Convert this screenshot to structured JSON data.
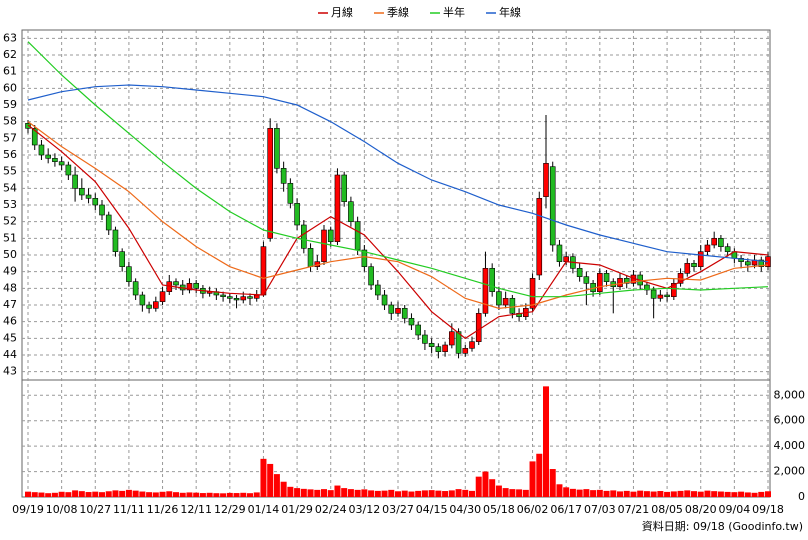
{
  "chart_data": {
    "type": "candlestick",
    "up_color": "#ff0000",
    "down_color": "#22bb22",
    "volume_color": "#ff0000",
    "grid": true,
    "ylim": [
      42.5,
      63.5
    ],
    "yticks": [
      43,
      44,
      45,
      46,
      47,
      48,
      49,
      50,
      51,
      52,
      53,
      54,
      55,
      56,
      57,
      58,
      59,
      60,
      61,
      62,
      63
    ],
    "y2lim": [
      0,
      9200
    ],
    "y2ticks": [
      0,
      {
        "value": 2000,
        "label": "2,000"
      },
      {
        "value": 4000,
        "label": "4,000"
      },
      {
        "value": 6000,
        "label": "6,000"
      },
      {
        "value": 8000,
        "label": "8,000"
      }
    ],
    "xlim": [
      0,
      110
    ],
    "xticks": [
      {
        "value": 0,
        "label": "09/19"
      },
      {
        "value": 5,
        "label": "10/08"
      },
      {
        "value": 10,
        "label": "10/27"
      },
      {
        "value": 15,
        "label": "11/11"
      },
      {
        "value": 20,
        "label": "11/26"
      },
      {
        "value": 25,
        "label": "12/11"
      },
      {
        "value": 30,
        "label": "12/29"
      },
      {
        "value": 35,
        "label": "01/14"
      },
      {
        "value": 40,
        "label": "01/29"
      },
      {
        "value": 45,
        "label": "02/24"
      },
      {
        "value": 50,
        "label": "03/12"
      },
      {
        "value": 55,
        "label": "03/27"
      },
      {
        "value": 60,
        "label": "04/15"
      },
      {
        "value": 65,
        "label": "04/30"
      },
      {
        "value": 70,
        "label": "05/18"
      },
      {
        "value": 75,
        "label": "06/02"
      },
      {
        "value": 80,
        "label": "06/17"
      },
      {
        "value": 85,
        "label": "07/03"
      },
      {
        "value": 90,
        "label": "07/21"
      },
      {
        "value": 95,
        "label": "08/05"
      },
      {
        "value": 100,
        "label": "08/20"
      },
      {
        "value": 105,
        "label": "09/04"
      },
      {
        "value": 110,
        "label": "09/18"
      }
    ],
    "footnote": "資料日期: 09/18 (Goodinfo.tw)",
    "ohlc": [
      [
        57.9,
        58.1,
        57.3,
        57.6
      ],
      [
        57.6,
        57.8,
        56.3,
        56.6
      ],
      [
        56.6,
        56.9,
        55.7,
        56.0
      ],
      [
        56.0,
        56.4,
        55.5,
        55.8
      ],
      [
        55.8,
        56.1,
        55.3,
        55.6
      ],
      [
        55.6,
        55.9,
        55.1,
        55.4
      ],
      [
        55.4,
        55.6,
        54.5,
        54.8
      ],
      [
        54.8,
        55.3,
        53.2,
        54.0
      ],
      [
        54.0,
        54.6,
        53.3,
        53.6
      ],
      [
        53.6,
        54.0,
        53.1,
        53.4
      ],
      [
        53.4,
        53.7,
        52.7,
        53.0
      ],
      [
        53.0,
        53.3,
        52.1,
        52.4
      ],
      [
        52.4,
        52.6,
        51.2,
        51.5
      ],
      [
        51.5,
        51.7,
        49.9,
        50.2
      ],
      [
        50.2,
        50.4,
        49.0,
        49.3
      ],
      [
        49.3,
        49.6,
        48.1,
        48.4
      ],
      [
        48.4,
        48.6,
        47.3,
        47.6
      ],
      [
        47.6,
        47.8,
        46.6,
        47.0
      ],
      [
        47.0,
        47.2,
        46.5,
        46.8
      ],
      [
        46.8,
        47.5,
        46.6,
        47.2
      ],
      [
        47.2,
        48.1,
        47.0,
        47.8
      ],
      [
        47.8,
        48.8,
        47.6,
        48.4
      ],
      [
        48.4,
        48.6,
        47.9,
        48.2
      ],
      [
        48.2,
        48.5,
        47.6,
        47.9
      ],
      [
        47.9,
        48.6,
        47.7,
        48.3
      ],
      [
        48.3,
        48.5,
        47.7,
        48.0
      ],
      [
        48.0,
        48.2,
        47.4,
        47.7
      ],
      [
        47.7,
        48.1,
        47.5,
        47.8
      ],
      [
        47.8,
        48.0,
        47.3,
        47.6
      ],
      [
        47.6,
        47.8,
        47.2,
        47.5
      ],
      [
        47.5,
        47.7,
        47.1,
        47.4
      ],
      [
        47.4,
        47.6,
        46.8,
        47.3
      ],
      [
        47.3,
        47.8,
        47.1,
        47.5
      ],
      [
        47.5,
        47.7,
        47.0,
        47.4
      ],
      [
        47.4,
        47.9,
        47.2,
        47.6
      ],
      [
        47.6,
        50.8,
        47.5,
        50.5
      ],
      [
        51.0,
        58.2,
        50.8,
        57.6
      ],
      [
        57.6,
        57.9,
        54.9,
        55.2
      ],
      [
        55.2,
        55.6,
        53.8,
        54.3
      ],
      [
        54.3,
        54.6,
        52.8,
        53.1
      ],
      [
        53.1,
        53.4,
        51.5,
        51.8
      ],
      [
        51.8,
        52.1,
        50.1,
        50.4
      ],
      [
        50.4,
        50.7,
        49.0,
        49.3
      ],
      [
        49.3,
        50.0,
        49.1,
        49.6
      ],
      [
        49.6,
        51.8,
        49.4,
        51.5
      ],
      [
        51.5,
        51.7,
        50.5,
        50.8
      ],
      [
        50.8,
        55.2,
        50.6,
        54.8
      ],
      [
        54.8,
        55.0,
        52.9,
        53.2
      ],
      [
        53.2,
        53.5,
        51.7,
        52.0
      ],
      [
        52.0,
        52.3,
        50.0,
        50.3
      ],
      [
        50.3,
        50.6,
        49.0,
        49.3
      ],
      [
        49.3,
        49.5,
        47.9,
        48.2
      ],
      [
        48.2,
        48.5,
        47.3,
        47.6
      ],
      [
        47.6,
        47.9,
        46.7,
        47.0
      ],
      [
        47.0,
        47.2,
        46.1,
        46.5
      ],
      [
        46.5,
        47.2,
        46.3,
        46.8
      ],
      [
        46.8,
        47.0,
        45.9,
        46.2
      ],
      [
        46.2,
        46.5,
        45.5,
        45.8
      ],
      [
        45.8,
        46.0,
        44.9,
        45.2
      ],
      [
        45.2,
        45.5,
        44.3,
        44.7
      ],
      [
        44.7,
        45.0,
        44.1,
        44.5
      ],
      [
        44.5,
        44.7,
        43.8,
        44.2
      ],
      [
        44.2,
        44.8,
        43.9,
        44.6
      ],
      [
        44.6,
        45.9,
        44.4,
        45.4
      ],
      [
        45.4,
        45.6,
        43.8,
        44.1
      ],
      [
        44.1,
        44.6,
        43.9,
        44.4
      ],
      [
        44.4,
        45.1,
        44.2,
        44.8
      ],
      [
        44.8,
        46.8,
        44.6,
        46.5
      ],
      [
        46.5,
        50.2,
        46.3,
        49.2
      ],
      [
        49.2,
        49.5,
        47.5,
        47.8
      ],
      [
        47.8,
        48.1,
        46.7,
        47.0
      ],
      [
        47.0,
        47.8,
        46.8,
        47.4
      ],
      [
        47.4,
        47.6,
        46.2,
        46.5
      ],
      [
        46.5,
        46.8,
        46.0,
        46.3
      ],
      [
        46.3,
        47.1,
        46.1,
        46.8
      ],
      [
        46.8,
        48.9,
        46.6,
        48.6
      ],
      [
        48.8,
        53.8,
        48.5,
        53.4
      ],
      [
        53.5,
        58.4,
        52.8,
        55.5
      ],
      [
        55.3,
        55.6,
        50.2,
        50.6
      ],
      [
        50.6,
        50.9,
        49.3,
        49.6
      ],
      [
        49.6,
        50.2,
        49.4,
        49.9
      ],
      [
        49.9,
        50.1,
        48.9,
        49.2
      ],
      [
        49.2,
        49.5,
        48.4,
        48.7
      ],
      [
        48.7,
        49.0,
        47.0,
        48.3
      ],
      [
        48.3,
        48.5,
        47.5,
        47.8
      ],
      [
        47.8,
        49.2,
        47.6,
        48.9
      ],
      [
        48.9,
        49.1,
        48.1,
        48.4
      ],
      [
        48.4,
        48.6,
        46.5,
        48.1
      ],
      [
        48.1,
        48.9,
        47.9,
        48.6
      ],
      [
        48.6,
        48.8,
        48.0,
        48.3
      ],
      [
        48.3,
        49.1,
        48.1,
        48.8
      ],
      [
        48.8,
        49.0,
        47.9,
        48.2
      ],
      [
        48.2,
        48.4,
        47.6,
        47.9
      ],
      [
        47.9,
        48.1,
        46.2,
        47.4
      ],
      [
        47.4,
        47.9,
        47.2,
        47.6
      ],
      [
        47.6,
        47.8,
        47.2,
        47.5
      ],
      [
        47.5,
        48.6,
        47.3,
        48.3
      ],
      [
        48.3,
        49.2,
        48.1,
        48.9
      ],
      [
        48.9,
        49.8,
        48.7,
        49.5
      ],
      [
        49.5,
        49.7,
        49.0,
        49.3
      ],
      [
        49.3,
        50.6,
        49.1,
        50.2
      ],
      [
        50.2,
        50.9,
        50.0,
        50.6
      ],
      [
        50.6,
        51.4,
        50.4,
        51.0
      ],
      [
        51.0,
        51.2,
        50.2,
        50.5
      ],
      [
        50.5,
        50.7,
        49.9,
        50.2
      ],
      [
        50.2,
        50.4,
        49.5,
        49.8
      ],
      [
        49.8,
        50.0,
        49.2,
        49.6
      ],
      [
        49.6,
        49.8,
        49.0,
        49.4
      ],
      [
        49.4,
        50.0,
        49.2,
        49.7
      ],
      [
        49.7,
        49.9,
        49.0,
        49.3
      ],
      [
        49.3,
        50.2,
        49.1,
        49.9
      ]
    ],
    "volume": [
      420,
      380,
      350,
      300,
      330,
      410,
      380,
      520,
      460,
      390,
      420,
      380,
      450,
      520,
      480,
      560,
      500,
      430,
      380,
      360,
      410,
      450,
      380,
      330,
      360,
      340,
      310,
      330,
      300,
      290,
      320,
      310,
      330,
      300,
      360,
      3000,
      2600,
      1800,
      1200,
      800,
      700,
      640,
      600,
      560,
      620,
      540,
      900,
      700,
      620,
      560,
      600,
      520,
      480,
      500,
      560,
      450,
      500,
      430,
      480,
      520,
      540,
      500,
      470,
      520,
      620,
      560,
      480,
      1600,
      2000,
      1400,
      900,
      700,
      620,
      600,
      560,
      2800,
      3400,
      8700,
      2200,
      1000,
      760,
      640,
      580,
      620,
      540,
      560,
      480,
      520,
      440,
      480,
      420,
      500,
      460,
      430,
      470,
      400,
      440,
      480,
      520,
      460,
      420,
      500,
      460,
      430,
      400,
      380,
      420,
      360,
      330,
      400,
      450
    ],
    "ma_x": [
      0,
      5,
      10,
      15,
      20,
      25,
      30,
      35,
      40,
      45,
      50,
      55,
      60,
      65,
      70,
      75,
      80,
      85,
      90,
      95,
      100,
      105,
      110
    ],
    "series": [
      {
        "name": "月線",
        "color": "#cc0000",
        "values": [
          57.8,
          56.2,
          54.4,
          51.6,
          48.2,
          47.9,
          47.7,
          47.6,
          51.0,
          52.3,
          51.2,
          49.0,
          46.6,
          45.0,
          46.3,
          46.6,
          49.6,
          49.4,
          48.6,
          48.0,
          49.0,
          50.2,
          50.0
        ]
      },
      {
        "name": "季線",
        "color": "#ee6a1a",
        "values": [
          58.0,
          56.5,
          55.2,
          53.8,
          52.0,
          50.5,
          49.3,
          48.6,
          49.1,
          49.6,
          49.9,
          49.6,
          48.7,
          47.4,
          46.8,
          47.0,
          47.6,
          48.1,
          48.4,
          48.6,
          48.5,
          49.2,
          49.4
        ]
      },
      {
        "name": "半年",
        "color": "#22cc22",
        "values": [
          62.8,
          60.8,
          59.0,
          57.3,
          55.6,
          54.0,
          52.6,
          51.5,
          51.0,
          50.6,
          50.2,
          49.7,
          49.2,
          48.6,
          48.0,
          47.5,
          47.5,
          47.7,
          47.9,
          48.0,
          47.9,
          48.0,
          48.1
        ]
      },
      {
        "name": "年線",
        "color": "#1f5fcc",
        "values": [
          59.3,
          59.8,
          60.1,
          60.2,
          60.1,
          59.9,
          59.7,
          59.5,
          59.0,
          58.0,
          56.8,
          55.5,
          54.5,
          53.8,
          53.0,
          52.5,
          51.8,
          51.2,
          50.7,
          50.2,
          50.0,
          49.8,
          49.6
        ]
      }
    ]
  }
}
